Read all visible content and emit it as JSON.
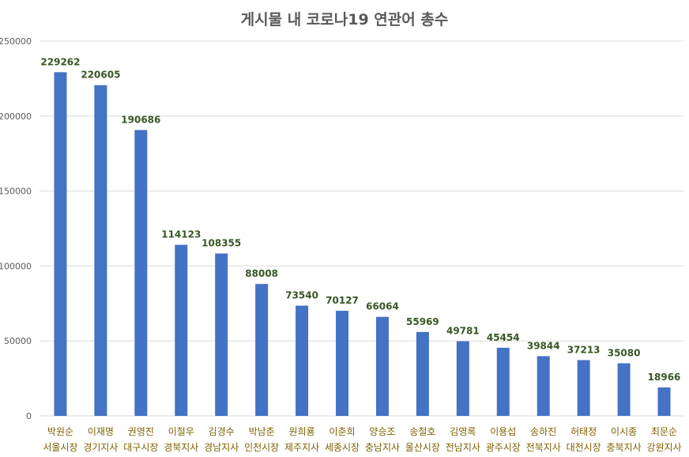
{
  "chart_data": {
    "type": "bar",
    "title": "게시물 내 코로나19 연관어 총수",
    "xlabel": "",
    "ylabel": "",
    "ylim": [
      0,
      250000
    ],
    "yticks": [
      "0",
      "50000",
      "100000",
      "150000",
      "200000",
      "250000"
    ],
    "grid": true,
    "bar_color": "#4472c4",
    "label_color": "#375623",
    "category_color": "#806000",
    "categories": [
      {
        "name": "박원순",
        "role": "서울시장"
      },
      {
        "name": "이재명",
        "role": "경기지사"
      },
      {
        "name": "권영진",
        "role": "대구시장"
      },
      {
        "name": "이철우",
        "role": "경북지사"
      },
      {
        "name": "김경수",
        "role": "경남지사"
      },
      {
        "name": "박남춘",
        "role": "인천시장"
      },
      {
        "name": "원희룡",
        "role": "제주지사"
      },
      {
        "name": "이춘희",
        "role": "세종시장"
      },
      {
        "name": "양승조",
        "role": "충남지사"
      },
      {
        "name": "송철호",
        "role": "울산시장"
      },
      {
        "name": "김영록",
        "role": "전남지사"
      },
      {
        "name": "이용섭",
        "role": "광주시장"
      },
      {
        "name": "송하진",
        "role": "전북지사"
      },
      {
        "name": "허태정",
        "role": "대전시장"
      },
      {
        "name": "이시종",
        "role": "충북지사"
      },
      {
        "name": "최문순",
        "role": "강원지사"
      }
    ],
    "values": [
      229262,
      220605,
      190686,
      114123,
      108355,
      88008,
      73540,
      70127,
      66064,
      55969,
      49781,
      45454,
      39844,
      37213,
      35080,
      18966
    ]
  }
}
